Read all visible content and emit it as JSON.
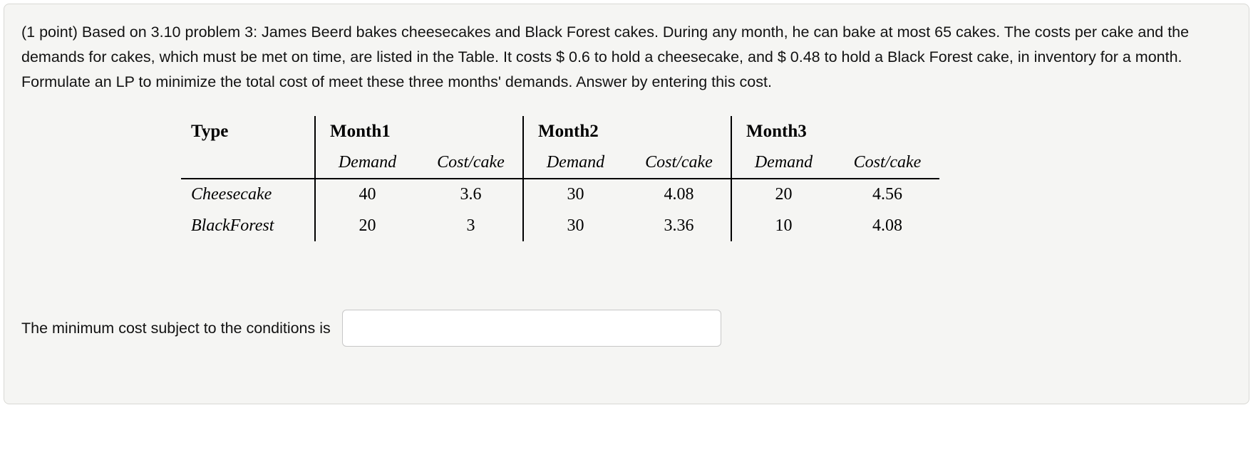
{
  "colors": {
    "panel_background": "#f5f5f3",
    "panel_border": "#d9d9d5",
    "table_line": "#000000",
    "input_border": "#c7c7c7"
  },
  "problem": {
    "text": "(1 point) Based on 3.10 problem 3: James Beerd bakes cheesecakes and Black Forest cakes. During any month, he can bake at most 65 cakes. The costs per cake and the demands for cakes, which must be met on time, are listed in the Table. It costs $ 0.6 to hold a cheesecake, and $ 0.48 to hold a Black Forest cake, in inventory for a month. Formulate an LP to minimize the total cost of meet these three months' demands. Answer by entering this cost."
  },
  "table": {
    "type_header": "Type",
    "month_headers": [
      "Month1",
      "Month2",
      "Month3"
    ],
    "sub_headers": [
      "Demand",
      "Cost/cake"
    ],
    "rows": [
      {
        "type": "Cheesecake",
        "values": [
          "40",
          "3.6",
          "30",
          "4.08",
          "20",
          "4.56"
        ]
      },
      {
        "type": "BlackForest",
        "values": [
          "20",
          "3",
          "30",
          "3.36",
          "10",
          "4.08"
        ]
      }
    ]
  },
  "answer": {
    "label": "The minimum cost subject to the conditions is",
    "value": "",
    "placeholder": ""
  }
}
